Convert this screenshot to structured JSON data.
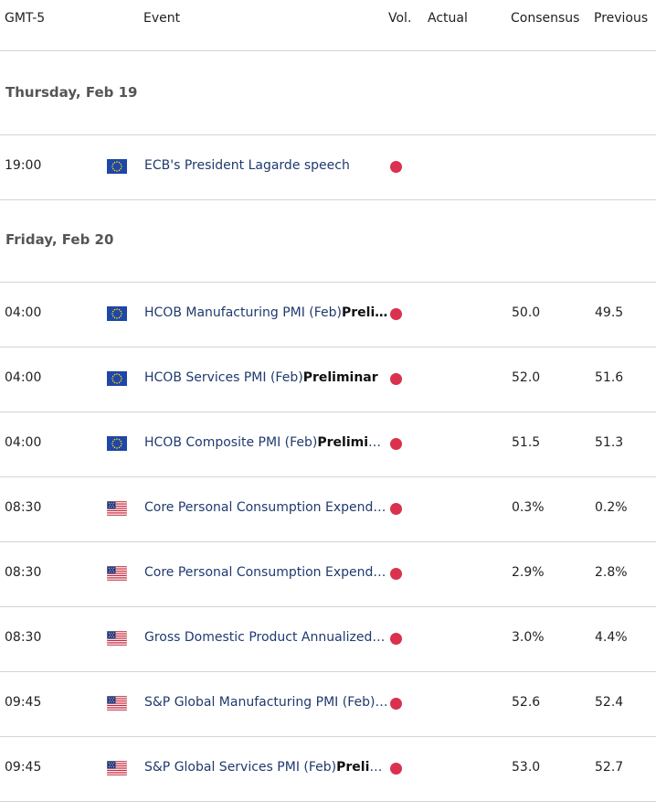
{
  "header": {
    "timezone": "GMT-5",
    "event": "Event",
    "vol": "Vol.",
    "actual": "Actual",
    "consensus": "Consensus",
    "previous": "Previous"
  },
  "volatility_color": "#d9314e",
  "days": [
    {
      "label": "Thursday, Feb 19",
      "events": [
        {
          "time": "19:00",
          "flag": "eu-flag-icon",
          "name": "ECB's President Lagarde speech",
          "suffix": "",
          "volatility": "high",
          "actual": "",
          "consensus": "",
          "previous": ""
        }
      ]
    },
    {
      "label": "Friday, Feb 20",
      "events": [
        {
          "time": "04:00",
          "flag": "eu-flag-icon",
          "name": "HCOB Manufacturing PMI (Feb)",
          "suffix": "Preli…",
          "volatility": "high",
          "actual": "",
          "consensus": "50.0",
          "previous": "49.5"
        },
        {
          "time": "04:00",
          "flag": "eu-flag-icon",
          "name": "HCOB Services PMI (Feb)",
          "suffix": "Preliminar",
          "volatility": "high",
          "actual": "",
          "consensus": "52.0",
          "previous": "51.6"
        },
        {
          "time": "04:00",
          "flag": "eu-flag-icon",
          "name": "HCOB Composite PMI (Feb)",
          "suffix": "Preliminar",
          "volatility": "high",
          "actual": "",
          "consensus": "51.5",
          "previous": "51.3"
        },
        {
          "time": "08:30",
          "flag": "us-flag-icon",
          "name": "Core Personal Consumption Expendit…",
          "suffix": "",
          "volatility": "high",
          "actual": "",
          "consensus": "0.3%",
          "previous": "0.2%"
        },
        {
          "time": "08:30",
          "flag": "us-flag-icon",
          "name": "Core Personal Consumption Expendit…",
          "suffix": "",
          "volatility": "high",
          "actual": "",
          "consensus": "2.9%",
          "previous": "2.8%"
        },
        {
          "time": "08:30",
          "flag": "us-flag-icon",
          "name": "Gross Domestic Product Annualized (…",
          "suffix": "",
          "volatility": "high",
          "actual": "",
          "consensus": "3.0%",
          "previous": "4.4%"
        },
        {
          "time": "09:45",
          "flag": "us-flag-icon",
          "name": "S&P Global Manufacturing PMI (Feb)",
          "suffix": "P…",
          "volatility": "high",
          "actual": "",
          "consensus": "52.6",
          "previous": "52.4"
        },
        {
          "time": "09:45",
          "flag": "us-flag-icon",
          "name": "S&P Global Services PMI (Feb)",
          "suffix": "Prelimi…",
          "volatility": "high",
          "actual": "",
          "consensus": "53.0",
          "previous": "52.7"
        }
      ]
    }
  ]
}
